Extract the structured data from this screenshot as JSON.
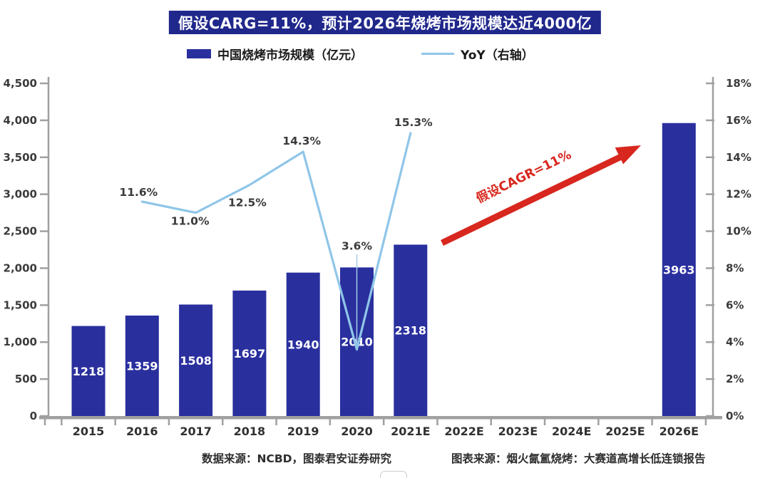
{
  "title": {
    "text": "假设CARG=11%，预计2026年烧烤市场规模达近4000亿"
  },
  "legend": {
    "bar": {
      "label": "中国烧烤市场规模（亿元）"
    },
    "line": {
      "label": "YoY（右轴）"
    }
  },
  "annotation_arrow": {
    "text": "假设CAGR=11%",
    "color": "#d8271e"
  },
  "footer": {
    "left": "数据来源：NCBD，图泰君安证券研究",
    "right": "图表来源：烟火氤氲烧烤：大赛道高增长低连锁报告"
  },
  "colors": {
    "bar": "#2a2f9e",
    "line": "#8fc6e8",
    "title_bg": "#20288c",
    "axis": "#a0a0a0",
    "tick_text": "#3b3b3b",
    "bar_label": "#ffffff"
  },
  "chart_data": {
    "type": "bar+line",
    "title": "假设CARG=11%，预计2026年烧烤市场规模达近4000亿",
    "categories": [
      "2015",
      "2016",
      "2017",
      "2018",
      "2019",
      "2020",
      "2021E",
      "2022E",
      "2023E",
      "2024E",
      "2025E",
      "2026E"
    ],
    "series": [
      {
        "name": "中国烧烤市场规模（亿元）",
        "type": "bar",
        "axis": "left",
        "color": "#2a2f9e",
        "values": [
          1218,
          1359,
          1508,
          1697,
          1940,
          2010,
          2318,
          null,
          null,
          null,
          null,
          3963
        ]
      },
      {
        "name": "YoY（右轴）",
        "type": "line",
        "axis": "right",
        "color": "#8fc6e8",
        "values": [
          null,
          11.6,
          11.0,
          12.5,
          14.3,
          3.6,
          15.3,
          null,
          null,
          null,
          null,
          null
        ]
      }
    ],
    "point_labels": [
      "11.6%",
      "11.0%",
      "12.5%",
      "14.3%",
      "3.6%",
      "15.3%"
    ],
    "left_axis": {
      "min": 0,
      "max": 4500,
      "step": 500,
      "ticks": [
        "0",
        "500",
        "1,000",
        "1,500",
        "2,000",
        "2,500",
        "3,000",
        "3,500",
        "4,000",
        "4,500"
      ]
    },
    "right_axis": {
      "min": 0,
      "max": 18,
      "step": 2,
      "ticks": [
        "0%",
        "2%",
        "4%",
        "6%",
        "8%",
        "10%",
        "12%",
        "14%",
        "16%",
        "18%"
      ]
    },
    "grid": false,
    "legend_position": "top",
    "annotations": [
      {
        "type": "arrow",
        "text": "假设CAGR=11%",
        "from_category": "2021E",
        "to_category": "2025E",
        "meaning": "assumed 11% CAGR from 2021E to 2026E"
      }
    ]
  }
}
